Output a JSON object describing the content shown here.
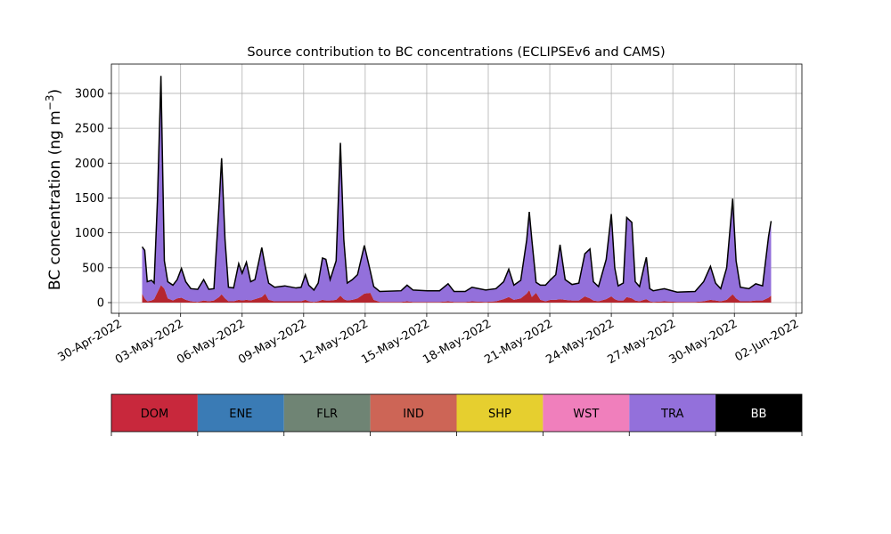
{
  "chart_data": {
    "type": "stacked_area",
    "title": "Source contribution to BC concentrations (ECLIPSEv6 and CAMS)",
    "ylabel": [
      "BC concentration (ng m",
      "−3",
      ")"
    ],
    "x": [
      "2022-05-01T03:00",
      "2022-05-01T06:00",
      "2022-05-01T09:00",
      "2022-05-01T14:00",
      "2022-05-01T17:00",
      "2022-05-01T21:00",
      "2022-05-02T01:00",
      "2022-05-02T05:00",
      "2022-05-02T09:00",
      "2022-05-02T15:00",
      "2022-05-02T20:00",
      "2022-05-03T01:00",
      "2022-05-03T06:00",
      "2022-05-03T12:00",
      "2022-05-03T20:00",
      "2022-05-04T03:00",
      "2022-05-04T09:00",
      "2022-05-04T15:00",
      "2022-05-04T21:00",
      "2022-05-05T00:00",
      "2022-05-05T04:00",
      "2022-05-05T08:00",
      "2022-05-05T14:00",
      "2022-05-05T20:00",
      "2022-05-06T00:00",
      "2022-05-06T05:00",
      "2022-05-06T10:00",
      "2022-05-06T15:00",
      "2022-05-06T23:00",
      "2022-05-07T03:00",
      "2022-05-07T07:00",
      "2022-05-07T14:00",
      "2022-05-08T02:00",
      "2022-05-08T15:00",
      "2022-05-08T21:00",
      "2022-05-09T02:00",
      "2022-05-09T06:00",
      "2022-05-09T12:00",
      "2022-05-09T17:00",
      "2022-05-09T22:00",
      "2022-05-10T02:00",
      "2022-05-10T07:00",
      "2022-05-10T14:00",
      "2022-05-10T19:00",
      "2022-05-10T23:00",
      "2022-05-11T03:00",
      "2022-05-11T09:00",
      "2022-05-11T15:00",
      "2022-05-11T23:00",
      "2022-05-12T06:00",
      "2022-05-12T10:00",
      "2022-05-12T17:00",
      "2022-05-13T18:00",
      "2022-05-14T01:00",
      "2022-05-14T08:00",
      "2022-05-15T01:00",
      "2022-05-15T15:00",
      "2022-05-16T01:00",
      "2022-05-16T08:00",
      "2022-05-16T21:00",
      "2022-05-17T05:00",
      "2022-05-17T21:00",
      "2022-05-18T09:00",
      "2022-05-18T18:00",
      "2022-05-19T00:00",
      "2022-05-19T06:00",
      "2022-05-19T14:00",
      "2022-05-19T21:00",
      "2022-05-20T00:00",
      "2022-05-20T03:00",
      "2022-05-20T08:00",
      "2022-05-20T13:00",
      "2022-05-20T19:00",
      "2022-05-21T01:00",
      "2022-05-21T07:00",
      "2022-05-21T12:00",
      "2022-05-21T18:00",
      "2022-05-22T02:00",
      "2022-05-22T10:00",
      "2022-05-22T17:00",
      "2022-05-22T23:00",
      "2022-05-23T03:00",
      "2022-05-23T09:00",
      "2022-05-23T18:00",
      "2022-05-24T00:00",
      "2022-05-24T04:00",
      "2022-05-24T08:00",
      "2022-05-24T14:00",
      "2022-05-24T18:00",
      "2022-05-25T00:00",
      "2022-05-25T04:00",
      "2022-05-25T09:00",
      "2022-05-25T14:00",
      "2022-05-25T17:00",
      "2022-05-25T21:00",
      "2022-05-26T01:00",
      "2022-05-26T14:00",
      "2022-05-27T05:00",
      "2022-05-28T02:00",
      "2022-05-28T12:00",
      "2022-05-28T20:00",
      "2022-05-29T02:00",
      "2022-05-29T08:00",
      "2022-05-29T15:00",
      "2022-05-29T22:00",
      "2022-05-30T02:00",
      "2022-05-30T07:00",
      "2022-05-30T17:00",
      "2022-05-31T01:00",
      "2022-05-31T09:00",
      "2022-05-31T16:00",
      "2022-05-31T19:00"
    ],
    "series": [
      {
        "name": "DOM",
        "color": "#b5262f",
        "values": [
          130,
          60,
          20,
          30,
          50,
          150,
          250,
          200,
          60,
          30,
          60,
          70,
          40,
          20,
          10,
          30,
          20,
          30,
          80,
          120,
          60,
          20,
          20,
          40,
          30,
          40,
          30,
          50,
          80,
          130,
          40,
          20,
          20,
          20,
          20,
          40,
          20,
          10,
          20,
          40,
          30,
          30,
          40,
          100,
          50,
          30,
          40,
          60,
          130,
          140,
          40,
          10,
          10,
          20,
          10,
          10,
          10,
          20,
          10,
          10,
          20,
          10,
          20,
          50,
          80,
          40,
          60,
          130,
          180,
          80,
          140,
          40,
          20,
          40,
          40,
          50,
          40,
          30,
          30,
          90,
          60,
          30,
          20,
          50,
          90,
          50,
          30,
          30,
          80,
          60,
          30,
          20,
          40,
          50,
          20,
          10,
          20,
          10,
          10,
          20,
          40,
          30,
          20,
          40,
          120,
          60,
          20,
          20,
          30,
          30,
          70,
          100
        ]
      },
      {
        "name": "TRA",
        "color": "#9370db",
        "values": [
          670,
          690,
          280,
          290,
          230,
          1350,
          3000,
          400,
          240,
          220,
          270,
          420,
          260,
          180,
          180,
          300,
          170,
          170,
          1320,
          1950,
          840,
          200,
          190,
          520,
          390,
          540,
          270,
          280,
          710,
          390,
          240,
          200,
          220,
          190,
          200,
          360,
          230,
          170,
          260,
          600,
          590,
          300,
          560,
          2190,
          850,
          250,
          290,
          340,
          690,
          310,
          190,
          150,
          160,
          230,
          170,
          160,
          160,
          250,
          150,
          150,
          200,
          170,
          180,
          250,
          400,
          210,
          260,
          770,
          1120,
          820,
          150,
          210,
          230,
          290,
          360,
          780,
          290,
          230,
          250,
          610,
          710,
          270,
          210,
          570,
          1180,
          450,
          210,
          250,
          1140,
          1090,
          270,
          210,
          460,
          600,
          180,
          160,
          180,
          140,
          150,
          280,
          480,
          250,
          180,
          460,
          1370,
          540,
          200,
          180,
          240,
          210,
          880,
          1070
        ]
      }
    ],
    "outline_color": "#000000",
    "xlim": [
      "2022-04-29T15:00",
      "2022-06-02T07:00"
    ],
    "xticks": [
      {
        "value": "2022-04-30",
        "label": "30-Apr-2022"
      },
      {
        "value": "2022-05-03",
        "label": "03-May-2022"
      },
      {
        "value": "2022-05-06",
        "label": "06-May-2022"
      },
      {
        "value": "2022-05-09",
        "label": "09-May-2022"
      },
      {
        "value": "2022-05-12",
        "label": "12-May-2022"
      },
      {
        "value": "2022-05-15",
        "label": "15-May-2022"
      },
      {
        "value": "2022-05-18",
        "label": "18-May-2022"
      },
      {
        "value": "2022-05-21",
        "label": "21-May-2022"
      },
      {
        "value": "2022-05-24",
        "label": "24-May-2022"
      },
      {
        "value": "2022-05-27",
        "label": "27-May-2022"
      },
      {
        "value": "2022-05-30",
        "label": "30-May-2022"
      },
      {
        "value": "2022-06-02",
        "label": "02-Jun-2022"
      }
    ],
    "ylim": [
      -153,
      3420
    ],
    "yticks": [
      0,
      500,
      1000,
      1500,
      2000,
      2500,
      3000
    ],
    "grid": true,
    "legend": [
      {
        "name": "DOM",
        "color": "#c8283c"
      },
      {
        "name": "ENE",
        "color": "#3a7bb5"
      },
      {
        "name": "FLR",
        "color": "#6f8474"
      },
      {
        "name": "IND",
        "color": "#cd6556"
      },
      {
        "name": "SHP",
        "color": "#e6cf2f"
      },
      {
        "name": "WST",
        "color": "#f07fbc"
      },
      {
        "name": "TRA",
        "color": "#9370db"
      },
      {
        "name": "BB",
        "color": "#000000"
      }
    ]
  }
}
